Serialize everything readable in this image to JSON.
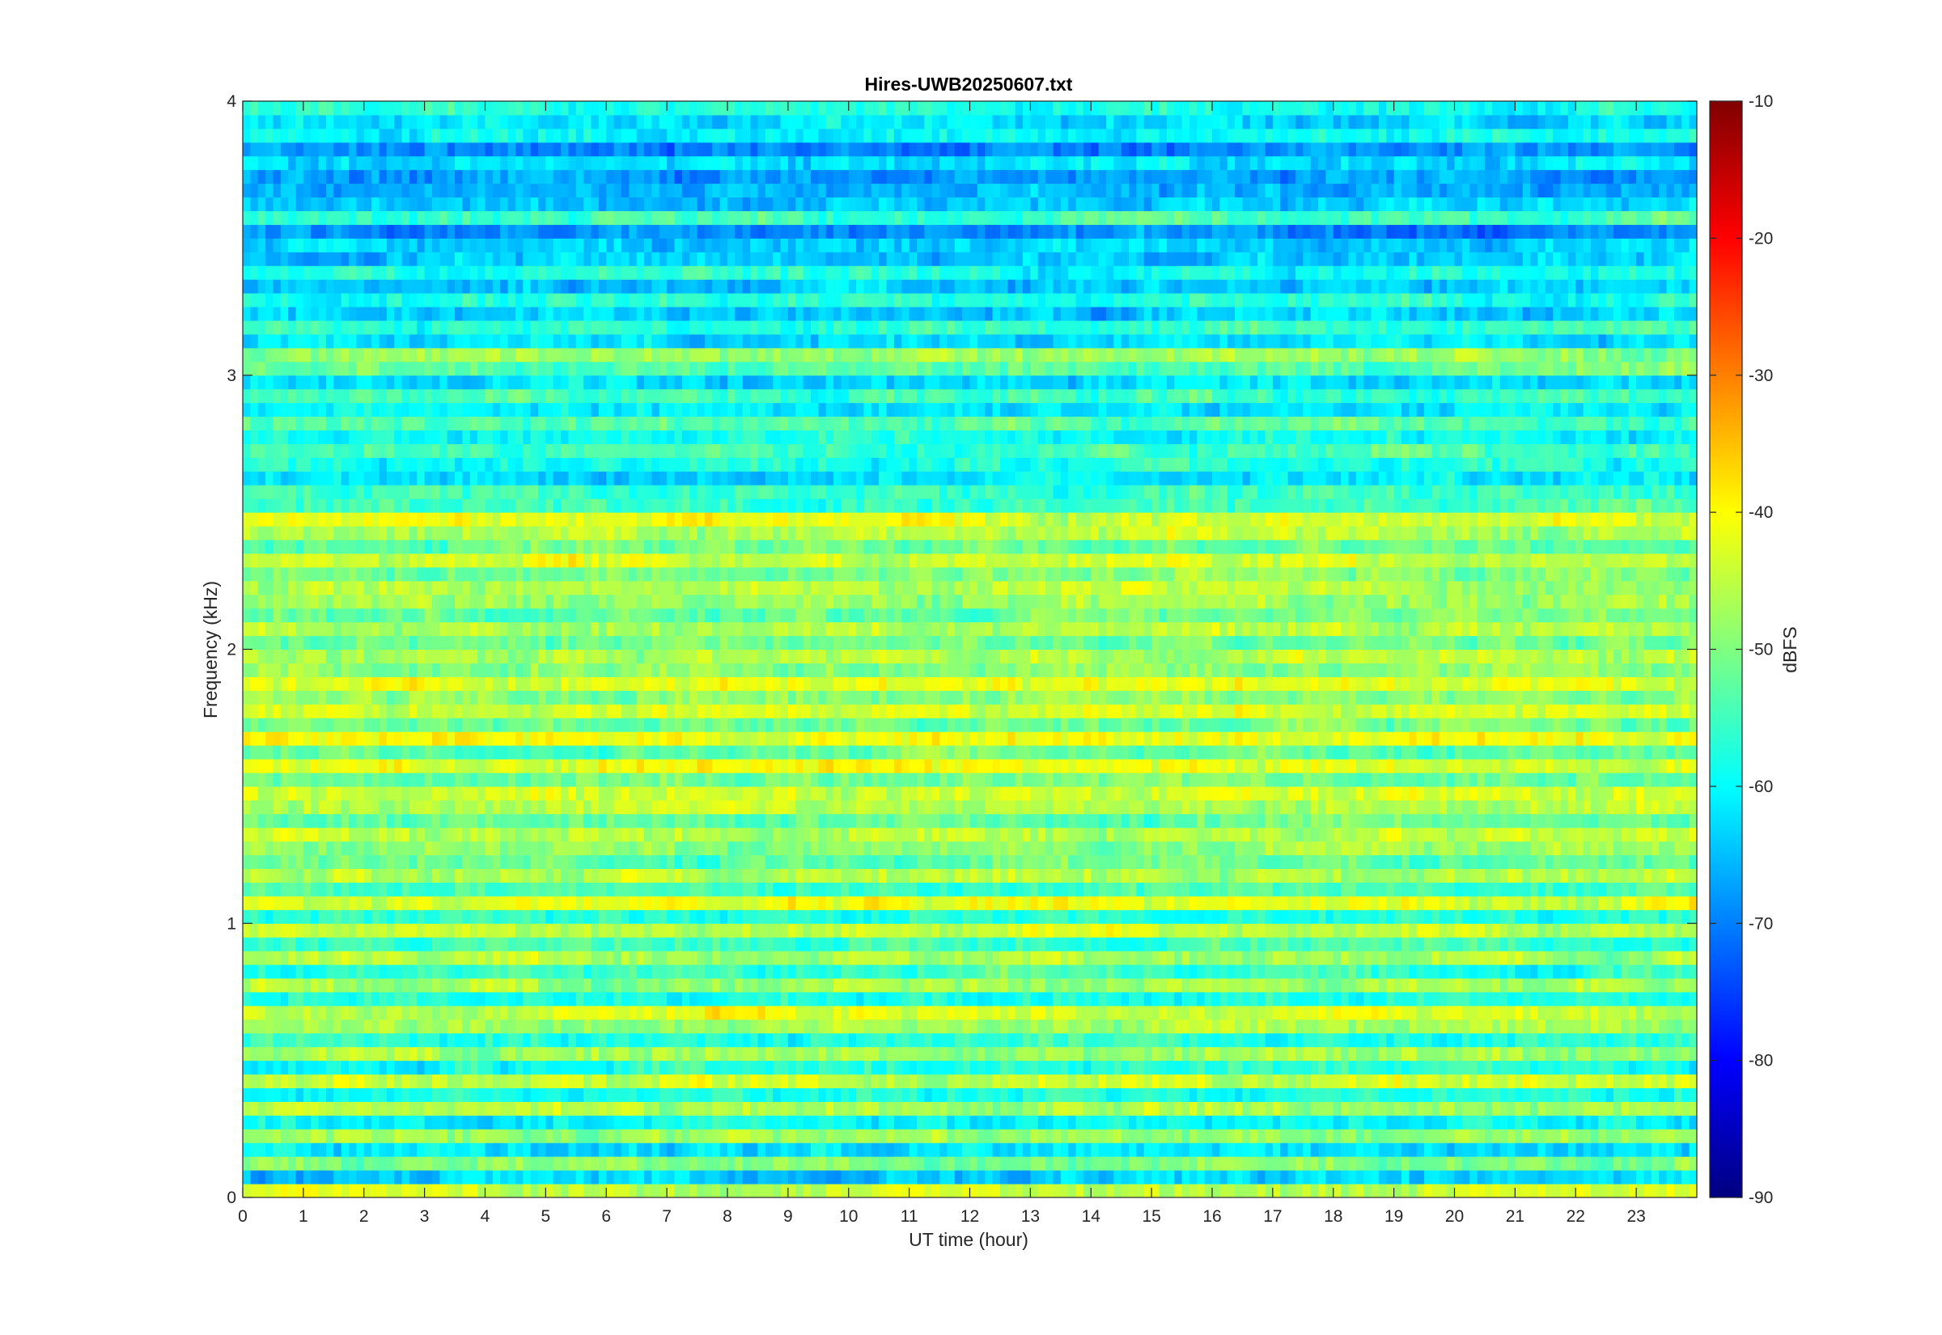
{
  "chart_data": {
    "type": "heatmap",
    "title": "Hires-UWB20250607.txt",
    "xlabel": "UT time (hour)",
    "ylabel": "Frequency (kHz)",
    "colorbar_label": "dBFS",
    "colormap": "jet",
    "xlim": [
      0,
      24
    ],
    "ylim": [
      0,
      4
    ],
    "clim": [
      -90,
      -10
    ],
    "x_ticks": [
      "0",
      "1",
      "2",
      "3",
      "4",
      "5",
      "6",
      "7",
      "8",
      "9",
      "10",
      "11",
      "12",
      "13",
      "14",
      "15",
      "16",
      "17",
      "18",
      "19",
      "20",
      "21",
      "22",
      "23"
    ],
    "y_ticks": [
      "0",
      "1",
      "2",
      "3",
      "4"
    ],
    "colorbar_ticks": [
      "-10",
      "-20",
      "-30",
      "-40",
      "-50",
      "-60",
      "-70",
      "-80",
      "-90"
    ],
    "frequency_profile_khz": [
      0,
      0.05,
      0.1,
      0.15,
      0.2,
      0.25,
      0.3,
      0.35,
      0.4,
      0.45,
      0.5,
      0.55,
      0.6,
      0.65,
      0.7,
      0.75,
      0.8,
      0.85,
      0.9,
      0.95,
      1.0,
      1.05,
      1.1,
      1.15,
      1.2,
      1.25,
      1.3,
      1.35,
      1.4,
      1.45,
      1.5,
      1.55,
      1.6,
      1.65,
      1.7,
      1.75,
      1.8,
      1.85,
      1.9,
      1.95,
      2.0,
      2.05,
      2.1,
      2.15,
      2.2,
      2.25,
      2.3,
      2.35,
      2.4,
      2.45,
      2.5,
      2.55,
      2.6,
      2.65,
      2.7,
      2.75,
      2.8,
      2.85,
      2.9,
      2.95,
      3.0,
      3.05,
      3.1,
      3.15,
      3.2,
      3.25,
      3.3,
      3.35,
      3.4,
      3.45,
      3.5,
      3.55,
      3.6,
      3.65,
      3.7,
      3.75,
      3.8,
      3.85,
      3.9,
      3.95
    ],
    "mean_level_dbfs": [
      -44,
      -64,
      -50,
      -62,
      -48,
      -60,
      -46,
      -58,
      -44,
      -58,
      -48,
      -56,
      -48,
      -44,
      -58,
      -47,
      -56,
      -47,
      -56,
      -45,
      -57,
      -43,
      -55,
      -46,
      -52,
      -48,
      -46,
      -52,
      -46,
      -43,
      -51,
      -41,
      -52,
      -41,
      -52,
      -43,
      -49,
      -43,
      -49,
      -46,
      -51,
      -46,
      -52,
      -48,
      -45,
      -50,
      -44,
      -52,
      -46,
      -43,
      -56,
      -55,
      -62,
      -58,
      -55,
      -59,
      -54,
      -61,
      -56,
      -62,
      -52,
      -48,
      -62,
      -56,
      -64,
      -58,
      -64,
      -58,
      -64,
      -64,
      -68,
      -55,
      -64,
      -66,
      -68,
      -62,
      -68,
      -60,
      -63,
      -58
    ]
  }
}
